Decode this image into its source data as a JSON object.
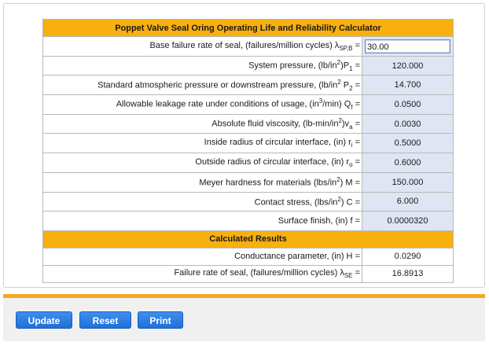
{
  "title": "Poppet Valve Seal Oring Operating Life and Reliability Calculator",
  "inputs": [
    {
      "label": "Base failure rate of seal, (failures/million cycles) λ",
      "sub": "SP,B",
      "suffix": " =",
      "value": "30.00",
      "focused": true
    },
    {
      "label": "System pressure, (lb/in",
      "sup": "2",
      "label2": ")P",
      "sub": "1",
      "suffix": " =",
      "value": "120.000"
    },
    {
      "label": "Standard atmospheric pressure or downstream pressure, (lb/in",
      "sup": "2",
      "label2": " P",
      "sub": "2",
      "suffix": " =",
      "value": "14.700"
    },
    {
      "label": "Allowable leakage rate under conditions of usage, (in",
      "sup": "3",
      "label2": "/min) Q",
      "sub": "f",
      "suffix": " =",
      "value": "0.0500"
    },
    {
      "label": "Absolute fluid viscosity, (lb-min/in",
      "sup": "2",
      "label2": ")v",
      "sub": "a",
      "suffix": " =",
      "value": "0.0030"
    },
    {
      "label": "Inside radius of circular interface, (in) r",
      "sub": "i",
      "suffix": " =",
      "value": "0.5000"
    },
    {
      "label": "Outside radius of circular interface, (in) r",
      "sub": "o",
      "suffix": " =",
      "value": "0.6000"
    },
    {
      "label": "Meyer hardness for materials (lbs/in",
      "sup": "2",
      "label2": ") M",
      "suffix": " =",
      "value": "150.000"
    },
    {
      "label": "Contact stress, (lbs/in",
      "sup": "2",
      "label2": ") C",
      "suffix": " =",
      "value": "6.000"
    },
    {
      "label": "Surface finish, (in) f",
      "suffix": " =",
      "value": "0.0000320"
    }
  ],
  "results_title": "Calculated Results",
  "results": [
    {
      "label": "Conductance parameter, (in) H",
      "suffix": " =",
      "value": "0.0290"
    },
    {
      "label": "Failure rate of seal, (failures/million cycles) λ",
      "sub": "SE",
      "suffix": " =",
      "value": "16.8913"
    }
  ],
  "buttons": {
    "update": "Update",
    "reset": "Reset",
    "print": "Print"
  },
  "colors": {
    "header": "#f8b00f",
    "input_bg": "#dfe5f3",
    "button": "#2b7de9",
    "bar": "#f5a623"
  }
}
